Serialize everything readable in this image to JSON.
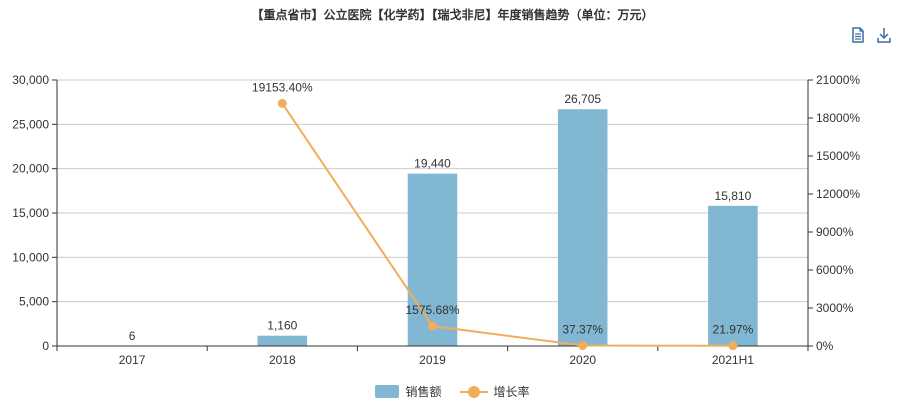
{
  "title": "【重点省市】公立医院【化学药】【瑞戈非尼】年度销售趋势（单位：万元）",
  "toolbar": {
    "data_view_icon": "document-icon",
    "download_icon": "download-icon"
  },
  "colors": {
    "bar": "#82b7d3",
    "line": "#f2ad5b",
    "axis": "#333333",
    "grid": "#cccccc",
    "icon": "#3b6d9d"
  },
  "chart_data": {
    "type": "bar+line",
    "categories": [
      "2017",
      "2018",
      "2019",
      "2020",
      "2021H1"
    ],
    "series": [
      {
        "name": "销售额",
        "type": "bar",
        "axis": "left",
        "values": [
          6,
          1160,
          19440,
          26705,
          15810
        ],
        "labels": [
          "6",
          "1,160",
          "19,440",
          "26,705",
          "15,810"
        ]
      },
      {
        "name": "增长率",
        "type": "line",
        "axis": "right",
        "values": [
          null,
          19153.4,
          1575.68,
          37.37,
          21.97
        ],
        "labels": [
          "",
          "19153.40%",
          "1575.68%",
          "37.37%",
          "21.97%"
        ]
      }
    ],
    "y_left": {
      "min": 0,
      "max": 30000,
      "ticks": [
        0,
        5000,
        10000,
        15000,
        20000,
        25000,
        30000
      ],
      "tick_labels": [
        "0",
        "5,000",
        "10,000",
        "15,000",
        "20,000",
        "25,000",
        "30,000"
      ]
    },
    "y_right": {
      "min": 0,
      "max": 21000,
      "ticks": [
        0,
        3000,
        6000,
        9000,
        12000,
        15000,
        18000,
        21000
      ],
      "tick_labels": [
        "0%",
        "3000%",
        "6000%",
        "9000%",
        "12000%",
        "15000%",
        "18000%",
        "21000%"
      ]
    },
    "legend": [
      "销售额",
      "增长率"
    ],
    "legend_position": "bottom-center",
    "grid": true
  }
}
